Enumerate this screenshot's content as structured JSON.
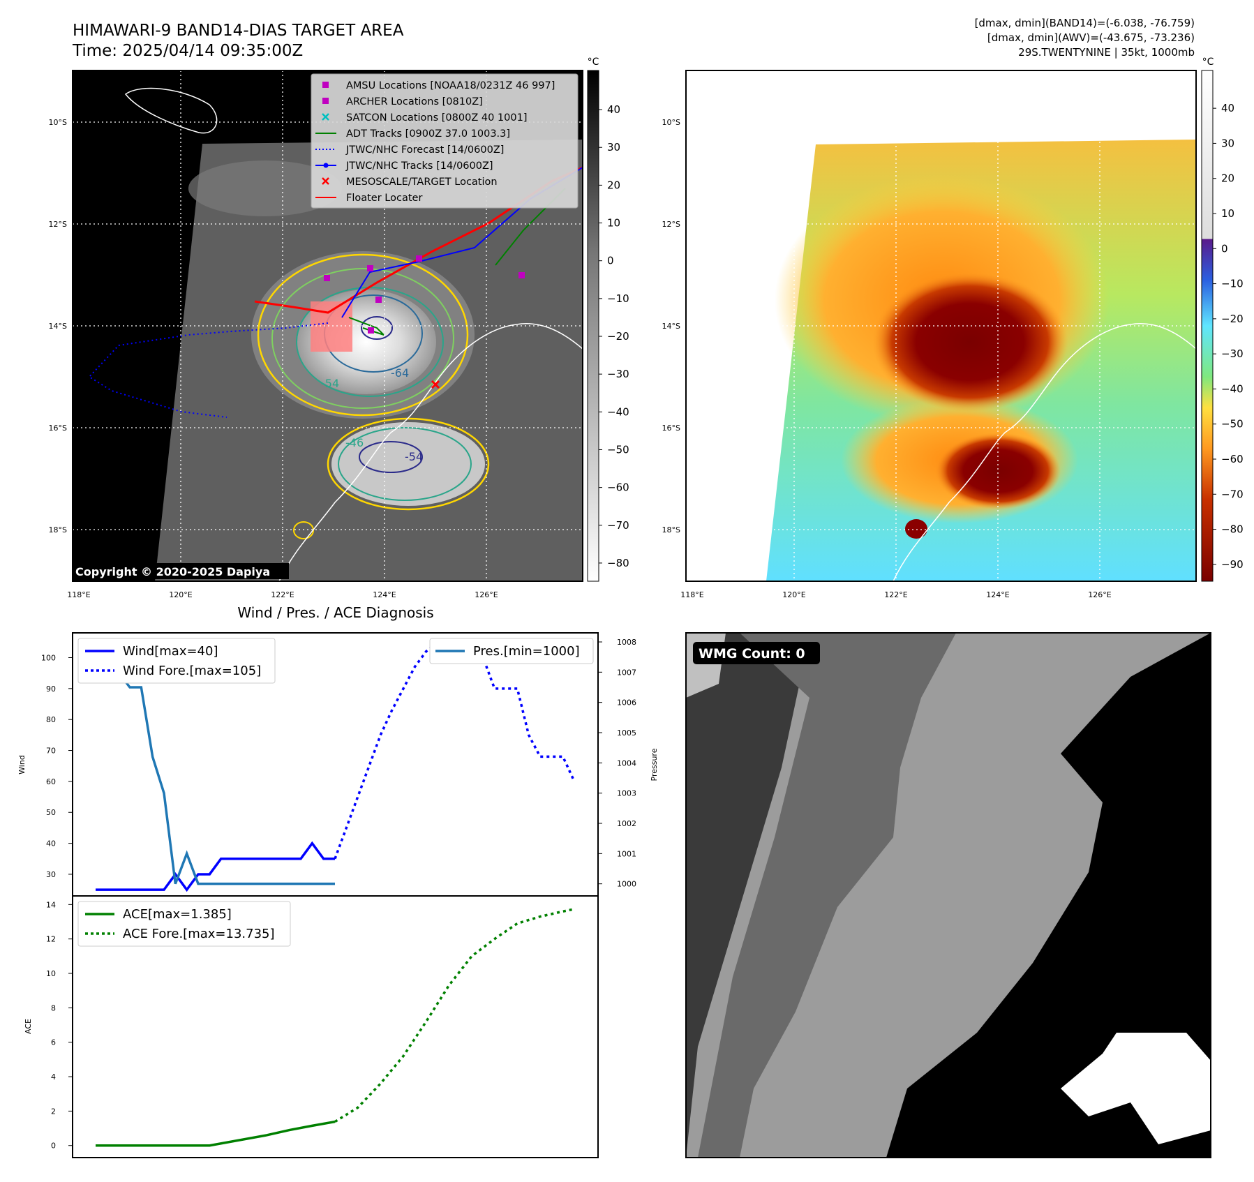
{
  "header": {
    "title_line1": "HIMAWARI-9 BAND14-DIAS TARGET AREA",
    "title_line2": "Time: 2025/04/14 09:35:00Z",
    "info_line1": "[dmax, dmin](BAND14)=(-6.038, -76.759)",
    "info_line2": "[dmax, dmin](AWV)=(-43.675, -73.236)",
    "info_line3": "29S.TWENTYNINE | 35kt, 1000mb"
  },
  "map_ir": {
    "legend": [
      {
        "label": "AMSU Locations [NOAA18/0231Z 46 997]",
        "color": "#c000c0",
        "marker": "square"
      },
      {
        "label": "ARCHER Locations [0810Z]",
        "color": "#c000c0",
        "marker": "square"
      },
      {
        "label": "SATCON Locations [0800Z 40 1001]",
        "color": "#00c0c0",
        "marker": "x"
      },
      {
        "label": "ADT Tracks [0900Z 37.0 1003.3]",
        "color": "#008000",
        "marker": "line"
      },
      {
        "label": "JTWC/NHC Forecast [14/0600Z]",
        "color": "#0000ff",
        "marker": "dotted"
      },
      {
        "label": "JTWC/NHC Tracks [14/0600Z]",
        "color": "#0000ff",
        "marker": "line-dot"
      },
      {
        "label": "MESOSCALE/TARGET Location",
        "color": "#ff0000",
        "marker": "x"
      },
      {
        "label": "Floater Locater",
        "color": "#ff0000",
        "marker": "line"
      }
    ],
    "copyright": "Copyright © 2020-2025 Dapiya",
    "colorbar_unit": "°C",
    "colorbar_ticks": [
      "40",
      "30",
      "20",
      "10",
      "0",
      "−10",
      "−20",
      "−30",
      "−40",
      "−50",
      "−60",
      "−70",
      "−80"
    ],
    "lat_labels": [
      "10°S",
      "12°S",
      "14°S",
      "16°S",
      "18°S"
    ],
    "lon_labels": [
      "118°E",
      "120°E",
      "122°E",
      "124°E",
      "126°E"
    ],
    "contour_labels": [
      "-54",
      "-64",
      "-46",
      "-54"
    ]
  },
  "map_awv": {
    "colorbar_unit": "°C",
    "colorbar_ticks": [
      "40",
      "30",
      "20",
      "10",
      "0",
      "−10",
      "−20",
      "−30",
      "−40",
      "−50",
      "−60",
      "−70",
      "−80",
      "−90"
    ],
    "lat_labels": [
      "10°S",
      "12°S",
      "14°S",
      "16°S",
      "18°S"
    ],
    "lon_labels": [
      "118°E",
      "120°E",
      "122°E",
      "124°E",
      "126°E"
    ]
  },
  "wmg": {
    "label": "WMG Count: 0"
  },
  "colors": {
    "wind": "#0000ff",
    "pressure": "#1f77b4",
    "ace": "#008000"
  },
  "chart_data": [
    {
      "type": "line",
      "title": "Wind / Pres. / ACE Diagnosis",
      "ylabel": "Wind",
      "ylabel_right": "Pressure",
      "ylim": [
        23,
        108
      ],
      "ylim_right": [
        999.6,
        1008.3
      ],
      "yticks": [
        30,
        40,
        50,
        60,
        70,
        80,
        90,
        100
      ],
      "yticks_right": [
        1000,
        1001,
        1002,
        1003,
        1004,
        1005,
        1006,
        1007,
        1008
      ],
      "series": [
        {
          "name": "Wind[max=40]",
          "style": "solid",
          "x": [
            0,
            1,
            2,
            3,
            4,
            5,
            6,
            7,
            8,
            9,
            10,
            11,
            12,
            13,
            14,
            15,
            16,
            17,
            18,
            19,
            20,
            21
          ],
          "values": [
            25,
            25,
            25,
            25,
            25,
            25,
            25,
            30,
            25,
            30,
            30,
            35,
            35,
            35,
            35,
            35,
            35,
            35,
            35,
            40,
            35,
            35
          ]
        },
        {
          "name": "Wind Fore.[max=105]",
          "style": "dotted",
          "x": [
            21,
            22,
            23,
            24,
            25,
            26,
            27,
            28,
            29,
            30,
            31,
            32,
            33,
            34,
            35,
            36,
            37,
            38,
            39,
            40,
            41,
            42
          ],
          "values": [
            35,
            45,
            55,
            65,
            75,
            83,
            90,
            97,
            102,
            105,
            103,
            103,
            103,
            100,
            90,
            90,
            90,
            75,
            68,
            68,
            68,
            60
          ]
        },
        {
          "name": "Pres.[min=1000]",
          "axis": "right",
          "x": [
            0,
            1,
            2,
            3,
            4,
            5,
            6,
            7,
            8,
            9,
            10,
            11,
            12,
            13,
            14,
            15,
            16,
            17,
            18,
            19,
            20,
            21
          ],
          "values": [
            1008,
            1007,
            1007,
            1006.5,
            1006.5,
            1004.2,
            1003,
            1000,
            1001,
            1000,
            1000,
            1000,
            1000,
            1000,
            1000,
            1000,
            1000,
            1000,
            1000,
            1000,
            1000,
            1000
          ]
        }
      ]
    },
    {
      "type": "line",
      "ylabel": "ACE",
      "ylim": [
        -0.7,
        14.5
      ],
      "yticks": [
        0,
        2,
        4,
        6,
        8,
        10,
        12,
        14
      ],
      "series": [
        {
          "name": "ACE[max=1.385]",
          "style": "solid",
          "x": [
            0,
            5,
            10,
            15,
            17,
            19,
            21
          ],
          "values": [
            0,
            0,
            0,
            0.6,
            0.9,
            1.15,
            1.385
          ]
        },
        {
          "name": "ACE Fore.[max=13.735]",
          "style": "dotted",
          "x": [
            21,
            23,
            25,
            27,
            29,
            31,
            33,
            35,
            37,
            39,
            41,
            42
          ],
          "values": [
            1.385,
            2.2,
            3.6,
            5.2,
            7.2,
            9.3,
            11.0,
            12.0,
            12.9,
            13.3,
            13.6,
            13.735
          ]
        }
      ]
    }
  ]
}
